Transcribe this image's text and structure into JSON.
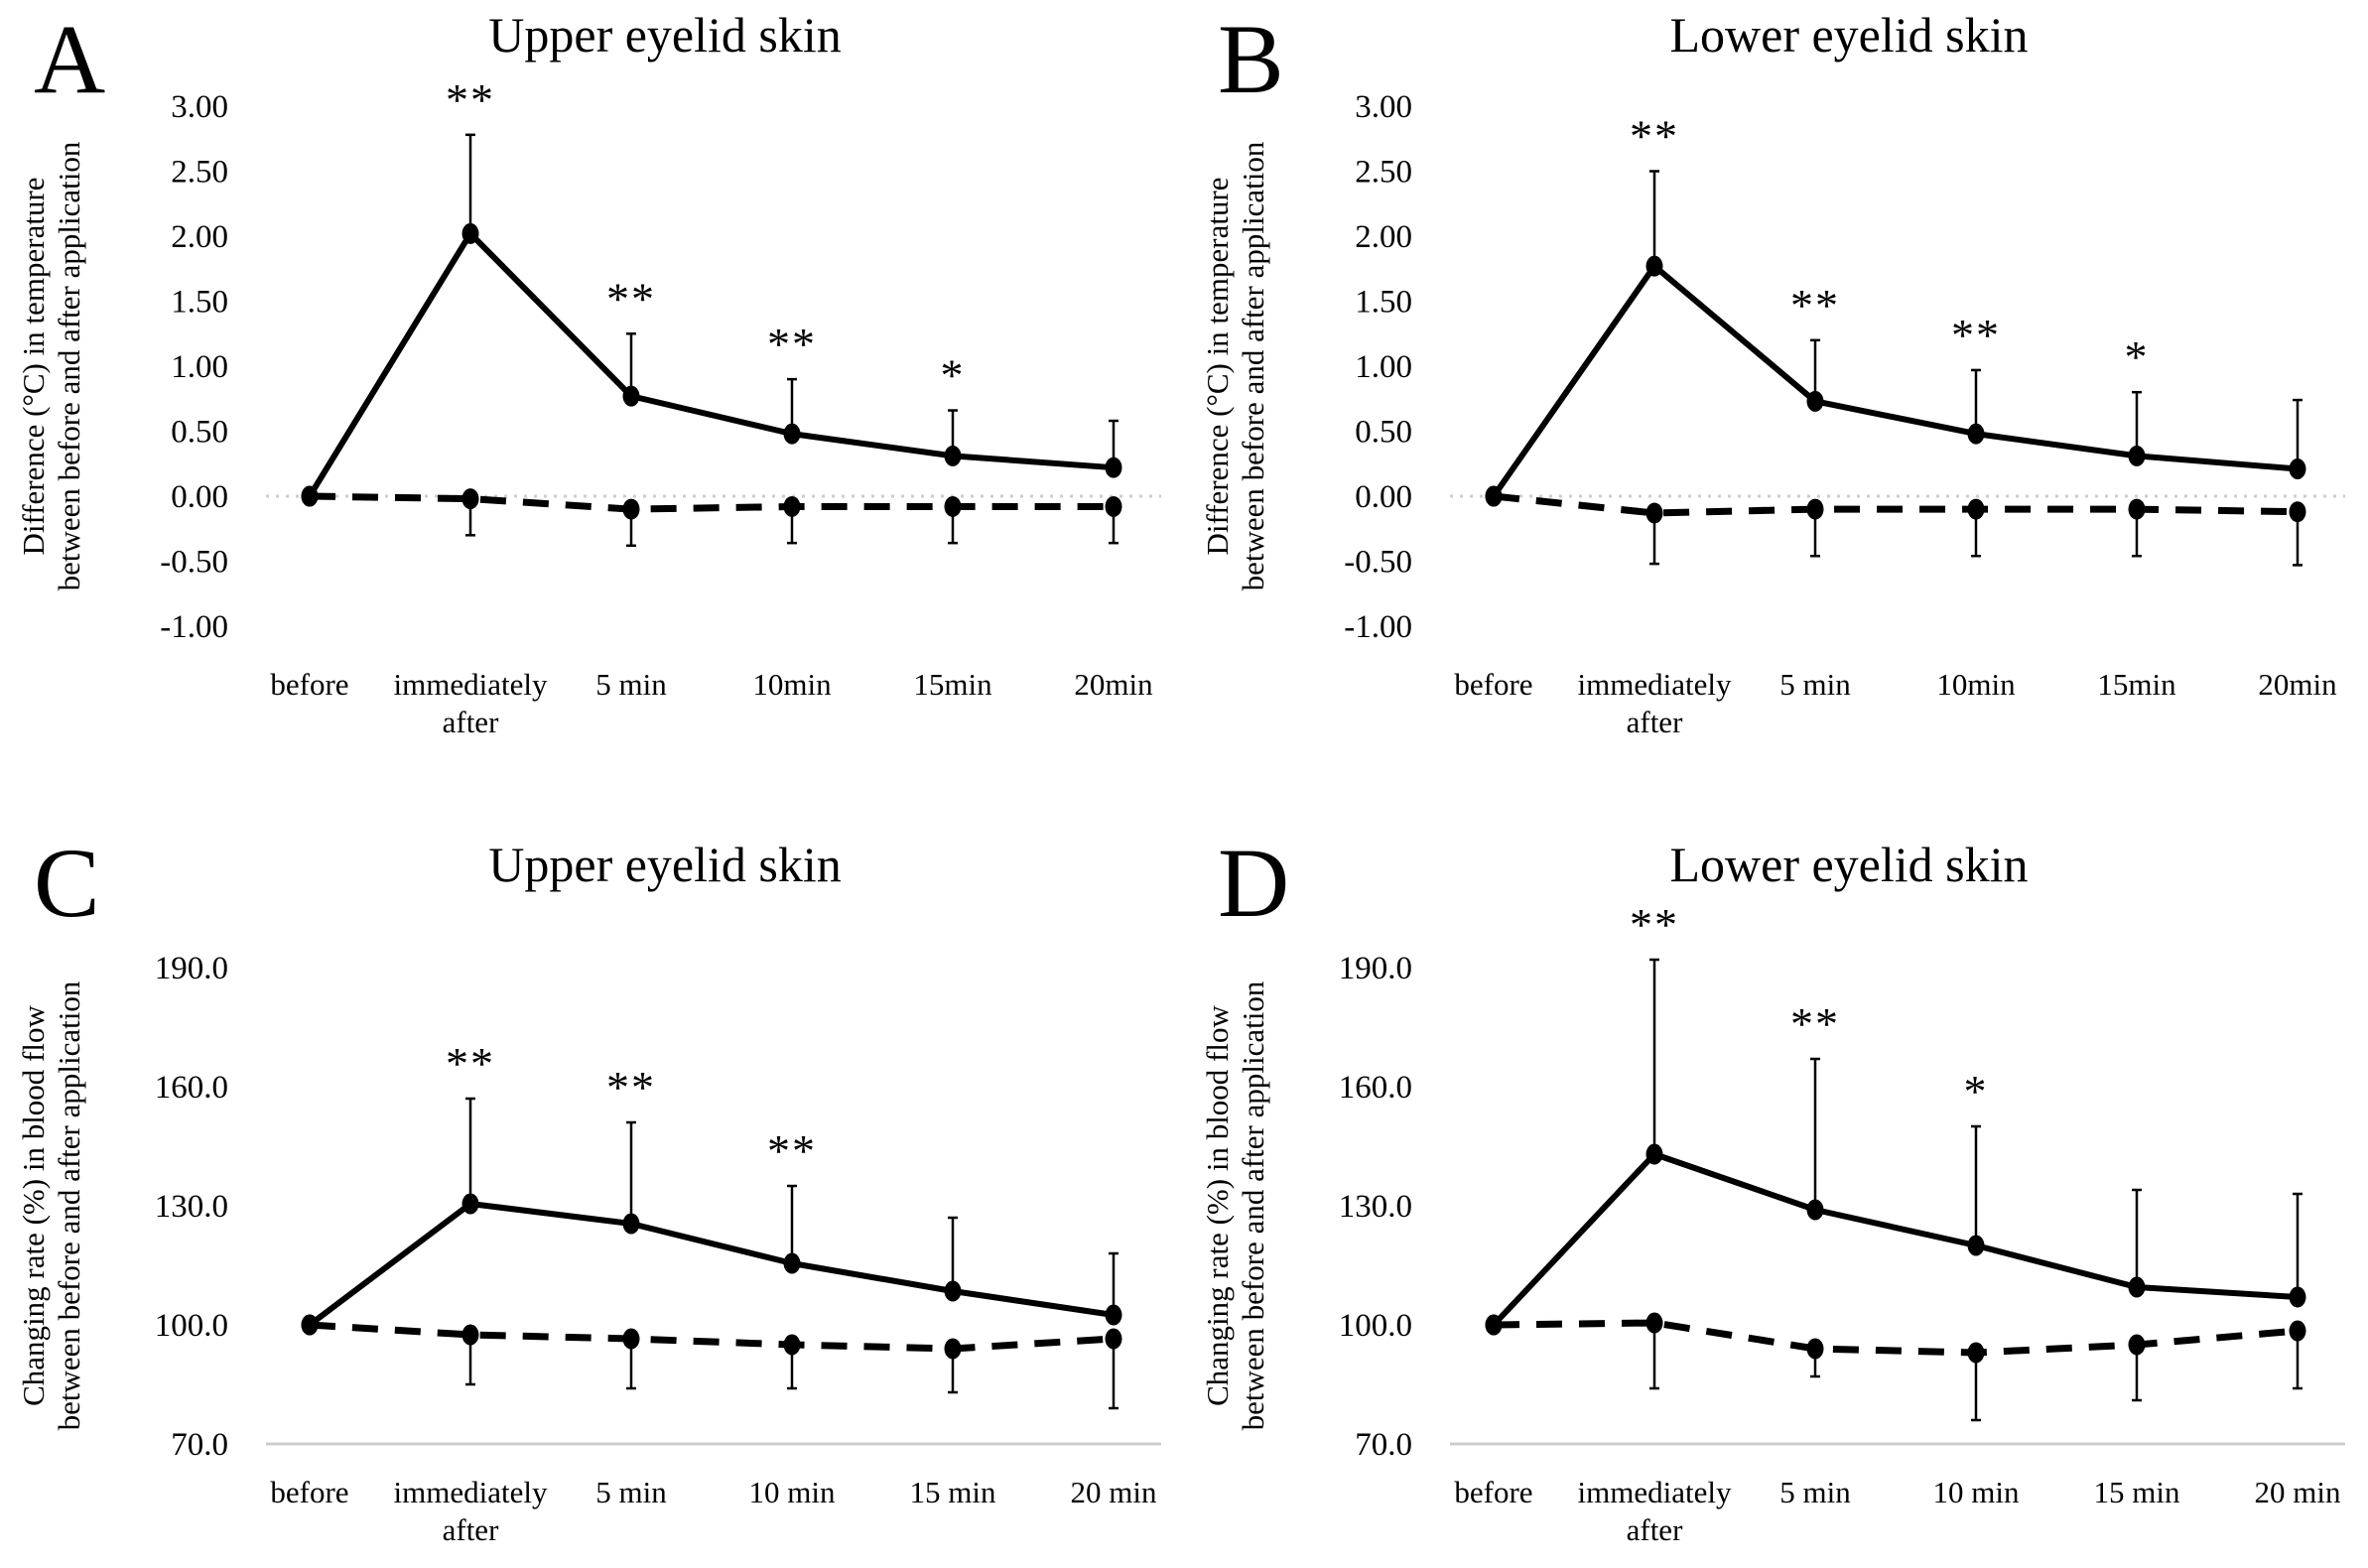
{
  "figure": {
    "background": "#ffffff",
    "ink_color": "#000000",
    "gridline_color": "#cccccc"
  },
  "chart_data": [
    {
      "panel_label": "A",
      "type": "line",
      "title": "Upper eyelid skin",
      "ylabel_lines": [
        "Difference (°C) in temperature",
        "between before and after application"
      ],
      "ytick_labels": [
        "3.00",
        "2.50",
        "2.00",
        "1.50",
        "1.00",
        "0.50",
        "0.00",
        "-0.50",
        "-1.00"
      ],
      "ytick_values": [
        3.0,
        2.5,
        2.0,
        1.5,
        1.0,
        0.5,
        0.0,
        -0.5,
        -1.0
      ],
      "ylim": [
        -1.0,
        3.0
      ],
      "categories": [
        "before",
        "immediately\nafter",
        "5 min",
        "10min",
        "15min",
        "20min"
      ],
      "baseline": {
        "value": 0.0,
        "style": "dotted"
      },
      "grid": "off",
      "legend": "none",
      "series": [
        {
          "name": "solid",
          "style": "solid",
          "marker": "circle",
          "values": [
            0.0,
            2.02,
            0.77,
            0.48,
            0.31,
            0.22
          ],
          "error_top": [
            null,
            2.78,
            1.25,
            0.9,
            0.66,
            0.58
          ]
        },
        {
          "name": "dashed",
          "style": "dashed",
          "marker": "circle",
          "values": [
            0.0,
            -0.02,
            -0.1,
            -0.08,
            -0.08,
            -0.08
          ],
          "error_bottom": [
            null,
            -0.3,
            -0.38,
            -0.36,
            -0.36,
            -0.36
          ]
        }
      ],
      "significance": [
        "",
        "**",
        "**",
        "**",
        "*",
        ""
      ]
    },
    {
      "panel_label": "B",
      "type": "line",
      "title": "Lower eyelid skin",
      "ylabel_lines": [
        "Difference (°C) in temperature",
        "between before and after application"
      ],
      "ytick_labels": [
        "3.00",
        "2.50",
        "2.00",
        "1.50",
        "1.00",
        "0.50",
        "0.00",
        "-0.50",
        "-1.00"
      ],
      "ytick_values": [
        3.0,
        2.5,
        2.0,
        1.5,
        1.0,
        0.5,
        0.0,
        -0.5,
        -1.0
      ],
      "ylim": [
        -1.0,
        3.0
      ],
      "categories": [
        "before",
        "immediately\nafter",
        "5 min",
        "10min",
        "15min",
        "20min"
      ],
      "baseline": {
        "value": 0.0,
        "style": "dotted"
      },
      "grid": "off",
      "legend": "none",
      "series": [
        {
          "name": "solid",
          "style": "solid",
          "marker": "circle",
          "values": [
            0.0,
            1.77,
            0.73,
            0.48,
            0.31,
            0.21
          ],
          "error_top": [
            null,
            2.5,
            1.2,
            0.97,
            0.8,
            0.74
          ]
        },
        {
          "name": "dashed",
          "style": "dashed",
          "marker": "circle",
          "values": [
            0.0,
            -0.13,
            -0.1,
            -0.1,
            -0.1,
            -0.12
          ],
          "error_bottom": [
            null,
            -0.52,
            -0.46,
            -0.46,
            -0.46,
            -0.53
          ]
        }
      ],
      "significance": [
        "",
        "**",
        "**",
        "**",
        "*",
        ""
      ]
    },
    {
      "panel_label": "C",
      "type": "line",
      "title": "Upper eyelid skin",
      "ylabel_lines": [
        "Changing rate (%) in blood flow",
        "between before and after application"
      ],
      "ytick_labels": [
        "190.0",
        "160.0",
        "130.0",
        "100.0",
        "70.0"
      ],
      "ytick_values": [
        190.0,
        160.0,
        130.0,
        100.0,
        70.0
      ],
      "ylim": [
        70.0,
        190.0
      ],
      "categories": [
        "before",
        "immediately\nafter",
        "5 min",
        "10 min",
        "15 min",
        "20 min"
      ],
      "baseline": {
        "value": 70.0,
        "style": "solid"
      },
      "grid": "off",
      "legend": "none",
      "series": [
        {
          "name": "solid",
          "style": "solid",
          "marker": "circle",
          "values": [
            100.0,
            130.5,
            125.5,
            115.5,
            108.5,
            102.5
          ],
          "error_top": [
            null,
            157.0,
            151.0,
            135.0,
            127.0,
            118.0
          ]
        },
        {
          "name": "dashed",
          "style": "dashed",
          "marker": "circle",
          "values": [
            100.0,
            97.5,
            96.5,
            95.0,
            94.0,
            96.5
          ],
          "error_bottom": [
            null,
            85.0,
            84.0,
            84.0,
            83.0,
            79.0
          ]
        }
      ],
      "significance": [
        "",
        "**",
        "**",
        "**",
        "",
        ""
      ]
    },
    {
      "panel_label": "D",
      "type": "line",
      "title": "Lower eyelid skin",
      "ylabel_lines": [
        "Changing rate (%) in blood flow",
        "between before and after application"
      ],
      "ytick_labels": [
        "190.0",
        "160.0",
        "130.0",
        "100.0",
        "70.0"
      ],
      "ytick_values": [
        190.0,
        160.0,
        130.0,
        100.0,
        70.0
      ],
      "ylim": [
        70.0,
        190.0
      ],
      "categories": [
        "before",
        "immediately\nafter",
        "5 min",
        "10 min",
        "15 min",
        "20 min"
      ],
      "baseline": {
        "value": 70.0,
        "style": "solid"
      },
      "grid": "off",
      "legend": "none",
      "series": [
        {
          "name": "solid",
          "style": "solid",
          "marker": "circle",
          "values": [
            100.0,
            143.0,
            129.0,
            120.0,
            109.5,
            107.0
          ],
          "error_top": [
            null,
            192.0,
            167.0,
            150.0,
            134.0,
            133.0
          ]
        },
        {
          "name": "dashed",
          "style": "dashed",
          "marker": "circle",
          "values": [
            100.0,
            100.5,
            94.0,
            93.0,
            95.0,
            98.5
          ],
          "error_bottom": [
            null,
            84.0,
            87.0,
            76.0,
            81.0,
            84.0
          ]
        }
      ],
      "significance": [
        "",
        "**",
        "**",
        "*",
        "",
        ""
      ]
    }
  ]
}
